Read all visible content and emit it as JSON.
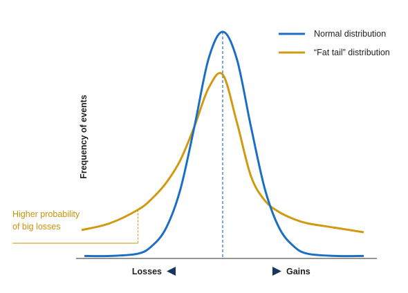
{
  "chart_data": {
    "type": "line",
    "title": "",
    "xlabel": "",
    "ylabel": "Frequency of events",
    "x_ends": {
      "left": "Losses",
      "right": "Gains"
    },
    "xlim": [
      -5,
      5
    ],
    "ylim": [
      0,
      1
    ],
    "grid": false,
    "legend_position": "top-right",
    "mean_marker": {
      "x": 0,
      "style": "dashed"
    },
    "series": [
      {
        "name": "Normal distribution",
        "color": "#1a6fc4",
        "x": [
          -4.9,
          -4,
          -3,
          -2.5,
          -2,
          -1.5,
          -1,
          -0.5,
          0,
          0.5,
          1,
          1.5,
          2,
          2.5,
          3,
          4,
          5
        ],
        "values": [
          0.005,
          0.005,
          0.015,
          0.05,
          0.13,
          0.3,
          0.58,
          0.88,
          1.0,
          0.88,
          0.58,
          0.3,
          0.13,
          0.05,
          0.015,
          0.005,
          0.005
        ]
      },
      {
        "name": "“Fat tail” distribution",
        "color": "#d19a0e",
        "x": [
          -5,
          -4,
          -3,
          -2.5,
          -2,
          -1.5,
          -1,
          -0.5,
          0,
          0.5,
          1,
          1.5,
          2,
          2.5,
          3,
          4,
          5
        ],
        "values": [
          0.12,
          0.15,
          0.21,
          0.26,
          0.33,
          0.43,
          0.58,
          0.75,
          0.81,
          0.6,
          0.36,
          0.25,
          0.2,
          0.17,
          0.15,
          0.13,
          0.11
        ]
      }
    ],
    "annotations": [
      {
        "text_lines": [
          "Higher probability",
          "of big losses"
        ],
        "color": "#c79208",
        "x": -3,
        "series": 1
      }
    ],
    "colors": {
      "normal": "#1a6fc4",
      "fat_tail": "#d19a0e",
      "annotation": "#c79208",
      "axis": "#555555"
    }
  }
}
